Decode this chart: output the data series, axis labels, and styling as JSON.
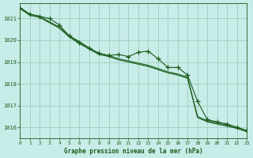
{
  "title": "Graphe pression niveau de la mer (hPa)",
  "background_color": "#c8ece8",
  "grid_color": "#a0ccc0",
  "line_color": "#1a5c1a",
  "xlim": [
    0,
    23
  ],
  "ylim": [
    1015.5,
    1021.7
  ],
  "yticks": [
    1016,
    1017,
    1018,
    1019,
    1020,
    1021
  ],
  "xticks": [
    0,
    1,
    2,
    3,
    4,
    5,
    6,
    7,
    8,
    9,
    10,
    11,
    12,
    13,
    14,
    15,
    16,
    17,
    18,
    19,
    20,
    21,
    22,
    23
  ],
  "series_smooth_top": [
    1021.5,
    1021.2,
    1021.1,
    1020.85,
    1020.6,
    1020.2,
    1019.95,
    1019.65,
    1019.4,
    1019.3,
    1019.15,
    1019.05,
    1018.95,
    1018.85,
    1018.7,
    1018.55,
    1018.45,
    1018.3,
    1016.5,
    1016.3,
    1016.2,
    1016.1,
    1016.0,
    1015.85
  ],
  "series_marker": [
    1021.5,
    1021.2,
    1021.1,
    1021.0,
    1020.7,
    1020.2,
    1019.9,
    1019.65,
    1019.4,
    1019.3,
    1019.35,
    1019.25,
    1019.45,
    1019.5,
    1019.15,
    1018.75,
    1018.75,
    1018.4,
    1017.2,
    1016.35,
    1016.25,
    1016.15,
    1016.0,
    1015.85
  ],
  "series_smooth_bot": [
    1021.45,
    1021.15,
    1021.05,
    1020.8,
    1020.55,
    1020.15,
    1019.85,
    1019.6,
    1019.35,
    1019.25,
    1019.1,
    1019.0,
    1018.9,
    1018.8,
    1018.65,
    1018.5,
    1018.4,
    1018.25,
    1016.45,
    1016.25,
    1016.15,
    1016.05,
    1015.95,
    1015.8
  ]
}
